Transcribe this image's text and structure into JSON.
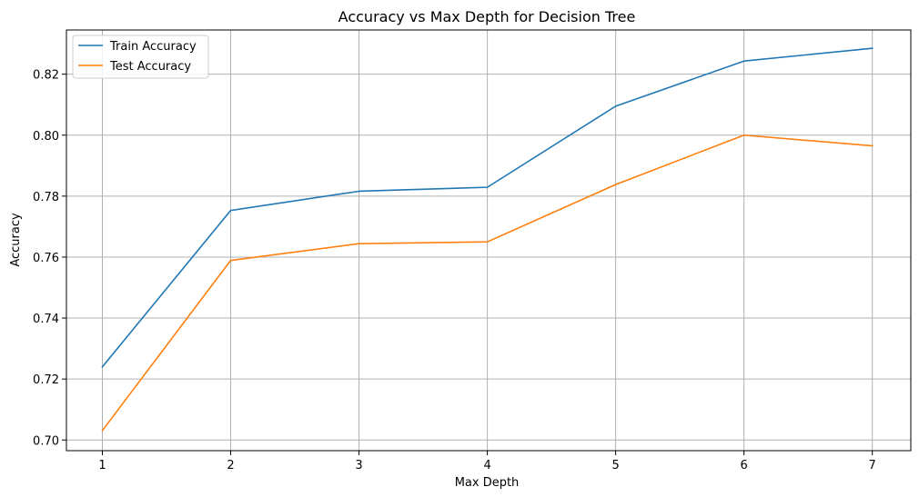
{
  "chart_data": {
    "type": "line",
    "title": "Accuracy vs Max Depth for Decision Tree",
    "xlabel": "Max Depth",
    "ylabel": "Accuracy",
    "x": [
      1,
      2,
      3,
      4,
      5,
      6,
      7
    ],
    "x_tick_labels": [
      "1",
      "2",
      "3",
      "4",
      "5",
      "6",
      "7"
    ],
    "y_ticks": [
      0.7,
      0.72,
      0.74,
      0.76,
      0.78,
      0.8,
      0.82
    ],
    "y_tick_labels": [
      "0.70",
      "0.72",
      "0.74",
      "0.76",
      "0.78",
      "0.80",
      "0.82"
    ],
    "xlim": [
      0.72,
      7.3
    ],
    "ylim": [
      0.6965,
      0.8345
    ],
    "grid": true,
    "legend_position": "top-left",
    "series": [
      {
        "name": "Train Accuracy",
        "color": "#1f77b4",
        "values": [
          0.724,
          0.7753,
          0.7816,
          0.7829,
          0.8095,
          0.8243,
          0.8285
        ]
      },
      {
        "name": "Test Accuracy",
        "color": "#ff7f0e",
        "values": [
          0.7031,
          0.7589,
          0.7644,
          0.765,
          0.7838,
          0.8,
          0.7965
        ]
      }
    ]
  }
}
